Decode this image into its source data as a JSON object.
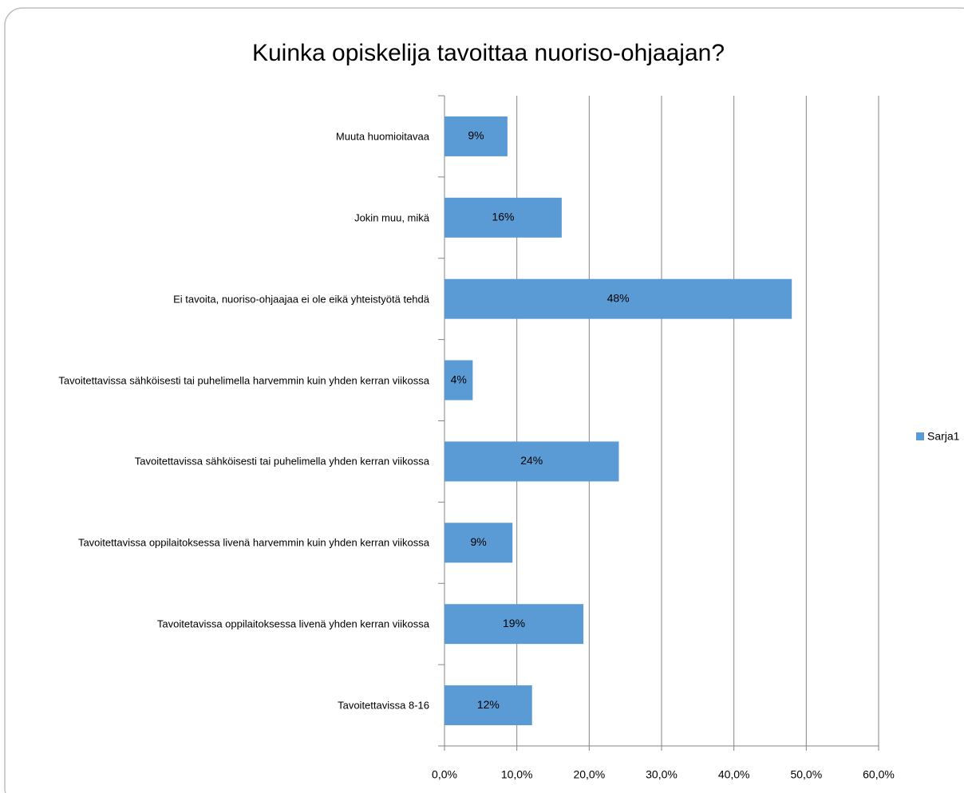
{
  "chart_data": {
    "type": "barh",
    "title": "Kuinka opiskelija tavoittaa nuoriso-ohjaajan?",
    "categories": [
      "Muuta huomioitavaa",
      "Jokin muu, mikä",
      "Ei tavoita, nuoriso-ohjaajaa ei ole eikä yhteistyötä tehdä",
      "Tavoitettavissa sähköisesti tai puhelimella harvemmin kuin yhden kerran viikossa",
      "Tavoitettavissa sähköisesti tai puhelimella yhden kerran viikossa",
      "Tavoitettavissa oppilaitoksessa livenä harvemmin kuin yhden kerran viikossa",
      "Tavoitetavissa oppilaitoksessa livenä yhden kerran viikossa",
      "Tavoitettavissa 8-16"
    ],
    "series": [
      {
        "name": "Sarja1",
        "color": "#5b9bd5",
        "values": [
          8.7,
          16.2,
          48.0,
          3.9,
          24.1,
          9.4,
          19.2,
          12.1
        ],
        "value_labels": [
          "9%",
          "16%",
          "48%",
          "4%",
          "24%",
          "9%",
          "19%",
          "12%"
        ]
      }
    ],
    "xlim": [
      0,
      60
    ],
    "xticks": [
      {
        "value": 0,
        "label": "0,0%"
      },
      {
        "value": 10,
        "label": "10,0%"
      },
      {
        "value": 20,
        "label": "20,0%"
      },
      {
        "value": 30,
        "label": "30,0%"
      },
      {
        "value": 40,
        "label": "40,0%"
      },
      {
        "value": 50,
        "label": "50,0%"
      },
      {
        "value": 60,
        "label": "60,0%"
      }
    ],
    "grid": true,
    "legend": "right"
  }
}
